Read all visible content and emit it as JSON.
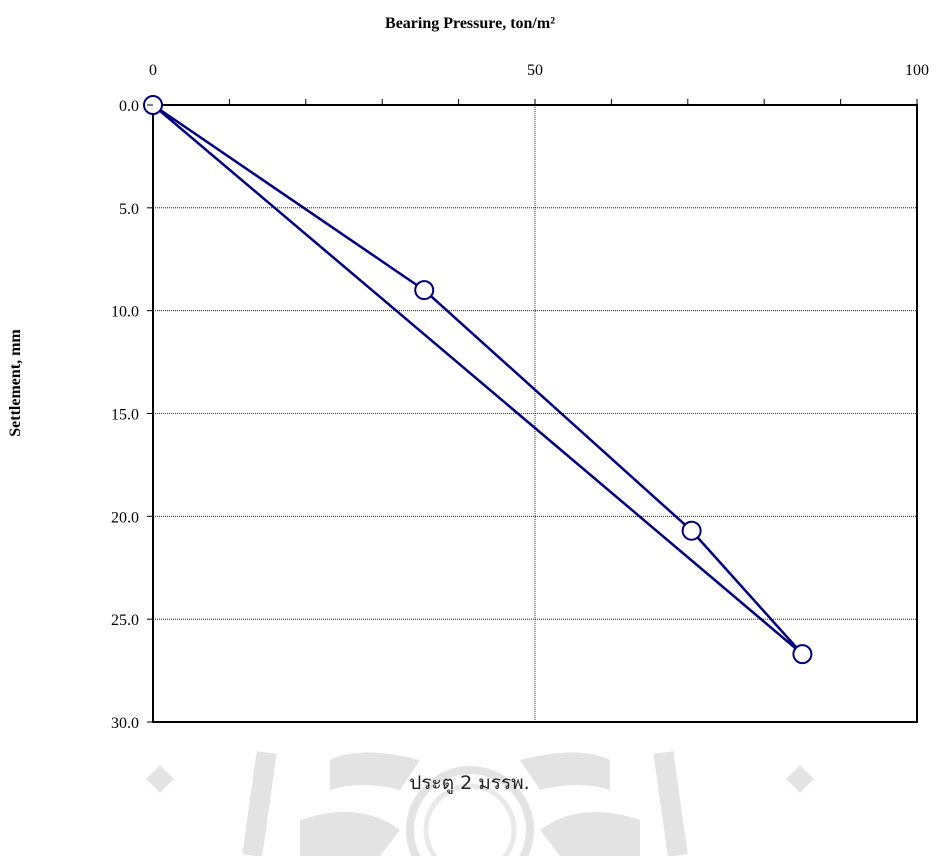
{
  "chart_data": {
    "type": "scatter",
    "title": "Bearing Pressure, ton/m²",
    "xlabel": "",
    "ylabel": "Settlement, mm",
    "xlim": [
      0,
      100
    ],
    "ylim": [
      0,
      30
    ],
    "y_inverted": true,
    "x_ticks": [
      "0",
      "50",
      "100"
    ],
    "y_ticks": [
      "0.0",
      "5.0",
      "10.0",
      "15.0",
      "20.0",
      "25.0",
      "30.0"
    ],
    "grid": {
      "x": true,
      "y": true
    },
    "series": [
      {
        "points": [
          {
            "x": 0,
            "y": 0
          },
          {
            "x": 35.5,
            "y": 9.0
          },
          {
            "x": 70.5,
            "y": 20.7
          },
          {
            "x": 85.0,
            "y": 26.7
          },
          {
            "x": 0,
            "y": 0
          }
        ],
        "markers": [
          {
            "x": 0,
            "y": 0
          },
          {
            "x": 35.5,
            "y": 9.0
          },
          {
            "x": 70.5,
            "y": 20.7
          },
          {
            "x": 85.0,
            "y": 26.7
          }
        ],
        "color": "#000080"
      }
    ]
  },
  "caption": "ประตู 2 มรรพ.",
  "colors": {
    "series": "#000080",
    "watermark": "#d9d9d9",
    "grid": "#000000"
  }
}
